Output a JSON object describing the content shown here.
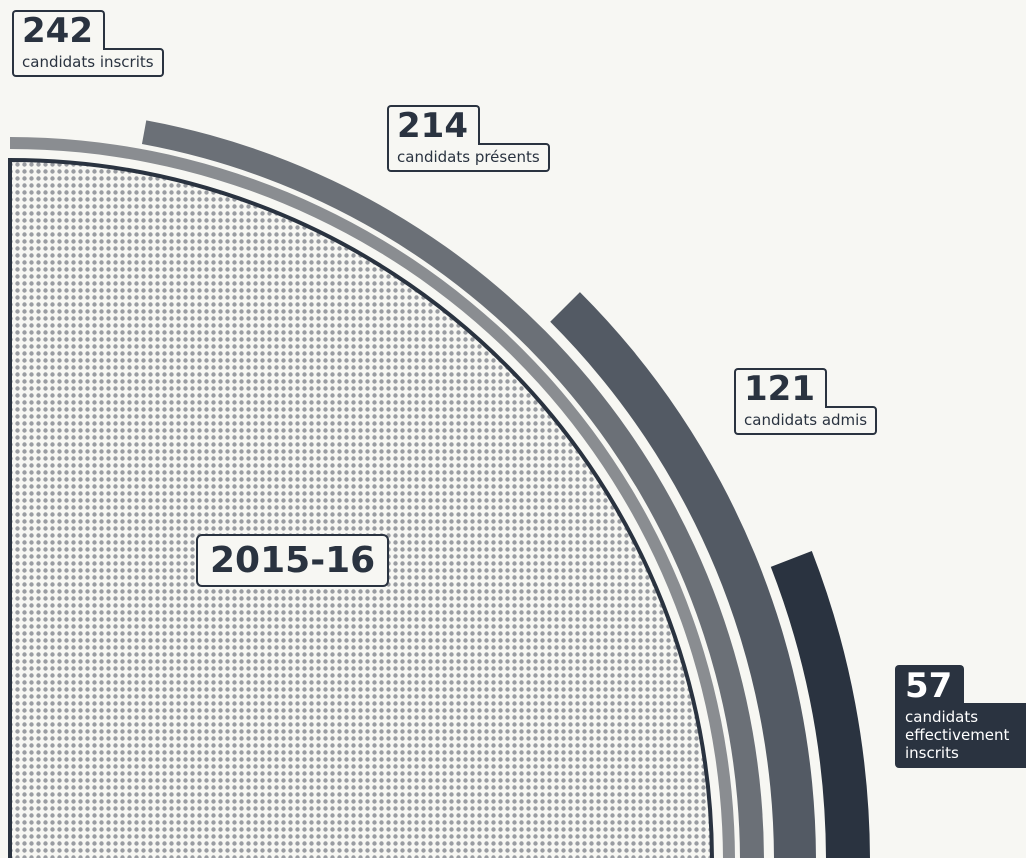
{
  "chart_data": {
    "type": "radial",
    "center_label": "2015-16",
    "categories": [
      "candidats inscrits",
      "candidats présents",
      "candidats admis",
      "candidats effectivement inscrits"
    ],
    "values": [
      242,
      214,
      121,
      57
    ],
    "colors": [
      "#8a8d91",
      "#6b7077",
      "#535a64",
      "#2a3340"
    ]
  }
}
